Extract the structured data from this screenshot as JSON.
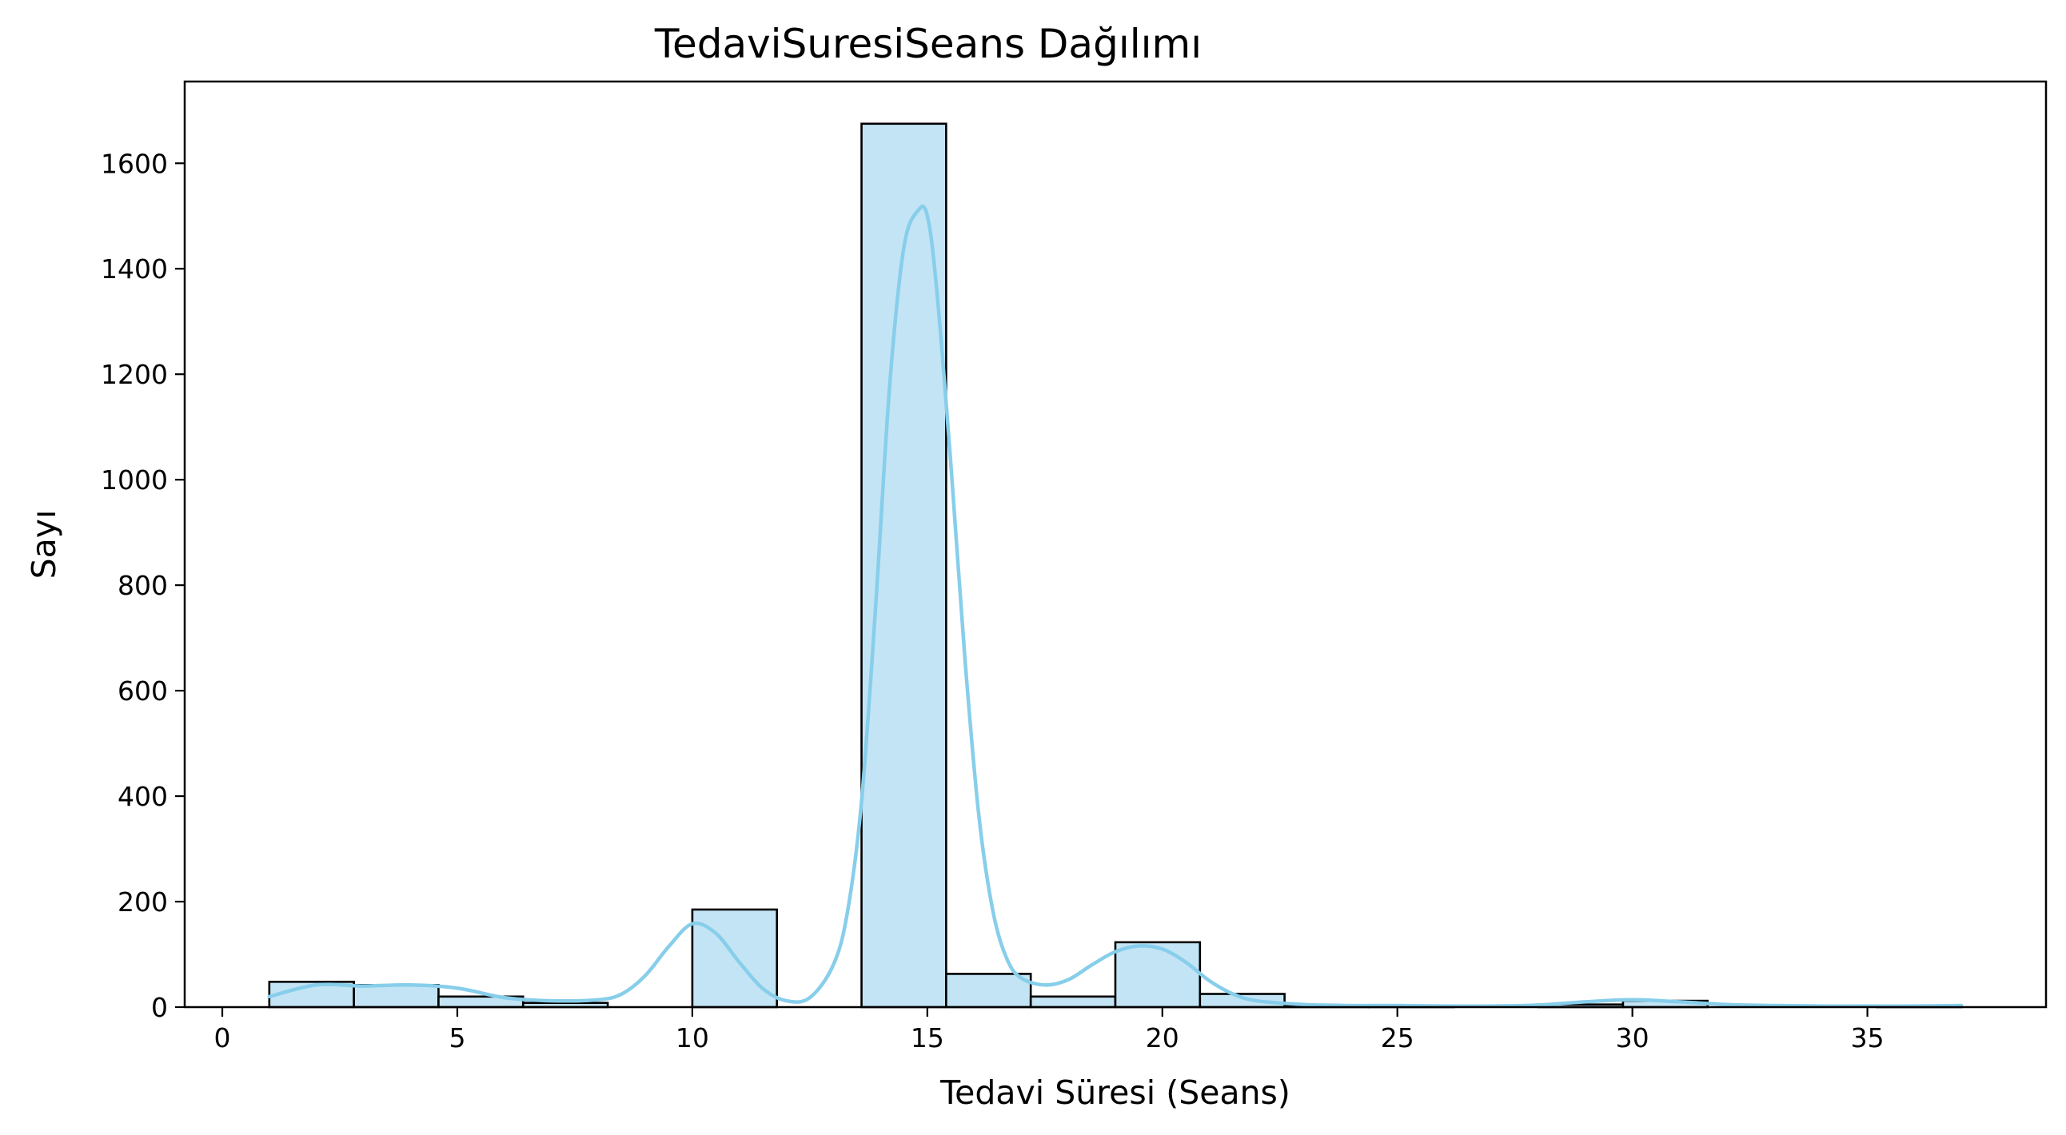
{
  "chart_data": {
    "type": "bar",
    "title": "TedaviSuresiSeans Dağılımı",
    "xlabel": "Tedavi Süresi (Seans)",
    "ylabel": "Sayı",
    "xlim": [
      -0.8,
      38.8
    ],
    "ylim": [
      0,
      1755
    ],
    "x_ticks": [
      0,
      5,
      10,
      15,
      20,
      25,
      30,
      35
    ],
    "y_ticks": [
      0,
      200,
      400,
      600,
      800,
      1000,
      1200,
      1400,
      1600
    ],
    "grid": false,
    "legend": "none",
    "bar_color": "#c3e4f4",
    "bar_edge_color": "#000000",
    "kde_color": "#87ceeb",
    "bins": [
      {
        "start": 1.0,
        "end": 2.8,
        "count": 48
      },
      {
        "start": 2.8,
        "end": 4.6,
        "count": 42
      },
      {
        "start": 4.6,
        "end": 6.4,
        "count": 20
      },
      {
        "start": 6.4,
        "end": 8.2,
        "count": 8
      },
      {
        "start": 8.2,
        "end": 10.0,
        "count": 0
      },
      {
        "start": 10.0,
        "end": 11.8,
        "count": 185
      },
      {
        "start": 11.8,
        "end": 13.6,
        "count": 0
      },
      {
        "start": 13.6,
        "end": 15.4,
        "count": 1675
      },
      {
        "start": 15.4,
        "end": 17.2,
        "count": 63
      },
      {
        "start": 17.2,
        "end": 19.0,
        "count": 20
      },
      {
        "start": 19.0,
        "end": 20.8,
        "count": 123
      },
      {
        "start": 20.8,
        "end": 22.6,
        "count": 25
      },
      {
        "start": 22.6,
        "end": 24.4,
        "count": 2
      },
      {
        "start": 24.4,
        "end": 26.2,
        "count": 2
      },
      {
        "start": 26.2,
        "end": 28.0,
        "count": 0
      },
      {
        "start": 28.0,
        "end": 29.8,
        "count": 5
      },
      {
        "start": 29.8,
        "end": 31.6,
        "count": 12
      },
      {
        "start": 31.6,
        "end": 33.4,
        "count": 0
      },
      {
        "start": 33.4,
        "end": 35.2,
        "count": 0
      },
      {
        "start": 35.2,
        "end": 37.0,
        "count": 3
      }
    ],
    "kde": {
      "x": [
        1,
        2,
        3,
        4,
        5,
        6,
        7,
        8,
        8.5,
        9,
        9.5,
        10,
        10.5,
        11,
        11.5,
        12,
        12.5,
        13,
        13.3,
        13.6,
        13.9,
        14.2,
        14.5,
        14.8,
        15,
        15.2,
        15.5,
        15.8,
        16.1,
        16.4,
        16.7,
        17,
        17.5,
        18,
        18.5,
        19,
        19.5,
        20,
        20.5,
        21,
        21.5,
        22,
        23,
        24,
        25,
        26,
        27,
        28,
        29,
        30,
        31,
        32,
        33,
        34,
        35,
        36,
        37
      ],
      "y": [
        20,
        42,
        40,
        42,
        36,
        18,
        12,
        14,
        25,
        60,
        115,
        158,
        140,
        85,
        35,
        12,
        18,
        80,
        180,
        390,
        760,
        1180,
        1440,
        1510,
        1500,
        1360,
        1030,
        660,
        360,
        180,
        90,
        55,
        42,
        52,
        80,
        105,
        116,
        110,
        85,
        50,
        25,
        12,
        5,
        3,
        3,
        2,
        2,
        4,
        10,
        14,
        10,
        5,
        3,
        2,
        2,
        2,
        3
      ]
    }
  }
}
